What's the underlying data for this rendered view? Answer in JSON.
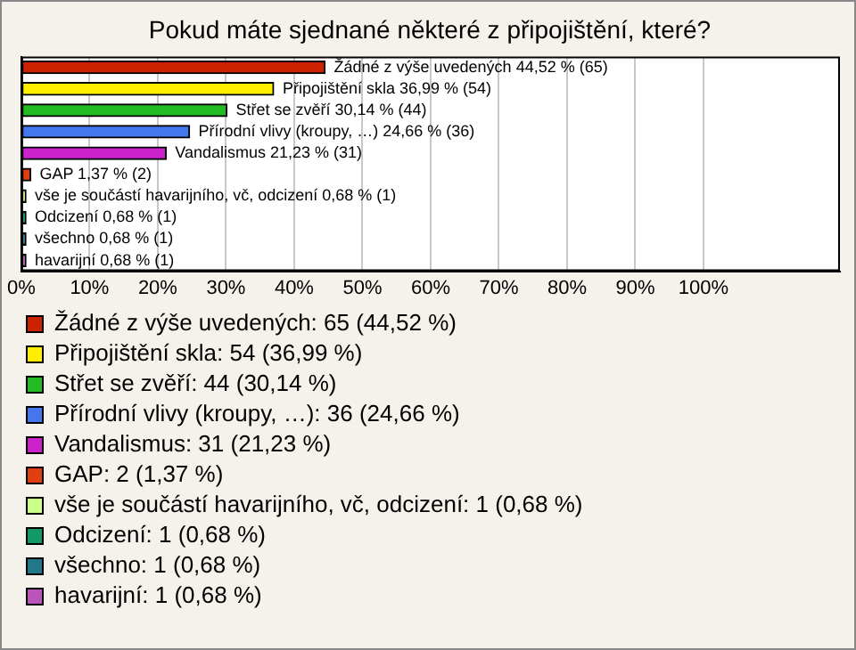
{
  "chart_data": {
    "type": "bar",
    "orientation": "horizontal",
    "title": "Pokud máte sjednané některé z připojištění, které?",
    "categories": [
      null,
      null,
      null,
      null,
      null,
      null,
      null,
      null,
      null,
      null
    ],
    "series": [
      {
        "name": "Žádné z výše uvedených: 65 (44,52 %)",
        "color": "#cc2200",
        "values": [
          44.52,
          null,
          null,
          null,
          null,
          null,
          null,
          null,
          null,
          null
        ],
        "value_labels": [
          "Žádné z výše uvedených 44,52 % (65)",
          null,
          null,
          null,
          null,
          null,
          null,
          null,
          null,
          null
        ]
      },
      {
        "name": "Připojištění skla: 54 (36,99 %)",
        "color": "#ffee00",
        "values": [
          null,
          36.99,
          null,
          null,
          null,
          null,
          null,
          null,
          null,
          null
        ],
        "value_labels": [
          null,
          "Připojištění skla 36,99 % (54)",
          null,
          null,
          null,
          null,
          null,
          null,
          null,
          null
        ]
      },
      {
        "name": "Střet se zvěří: 44 (30,14 %)",
        "color": "#22bb22",
        "values": [
          null,
          null,
          30.14,
          null,
          null,
          null,
          null,
          null,
          null,
          null
        ],
        "value_labels": [
          null,
          null,
          "Střet se zvěří 30,14 % (44)",
          null,
          null,
          null,
          null,
          null,
          null,
          null
        ]
      },
      {
        "name": "Přírodní vlivy (kroupy, …): 36 (24,66 %)",
        "color": "#4477ee",
        "values": [
          null,
          null,
          null,
          24.66,
          null,
          null,
          null,
          null,
          null,
          null
        ],
        "value_labels": [
          null,
          null,
          null,
          "Přírodní vlivy (kroupy, …) 24,66 % (36)",
          null,
          null,
          null,
          null,
          null,
          null
        ]
      },
      {
        "name": "Vandalismus: 31 (21,23 %)",
        "color": "#cc22cc",
        "values": [
          null,
          null,
          null,
          null,
          21.23,
          null,
          null,
          null,
          null,
          null
        ],
        "value_labels": [
          null,
          null,
          null,
          null,
          "Vandalismus 21,23 % (31)",
          null,
          null,
          null,
          null,
          null
        ]
      },
      {
        "name": "GAP: 2 (1,37 %)",
        "color": "#e04010",
        "values": [
          null,
          null,
          null,
          null,
          null,
          1.37,
          null,
          null,
          null,
          null
        ],
        "value_labels": [
          null,
          null,
          null,
          null,
          null,
          "GAP 1,37 % (2)",
          null,
          null,
          null,
          null
        ]
      },
      {
        "name": "vše je součástí havarijního, vč, odcizení: 1 (0,68 %)",
        "color": "#ccff88",
        "values": [
          null,
          null,
          null,
          null,
          null,
          null,
          0.68,
          null,
          null,
          null
        ],
        "value_labels": [
          null,
          null,
          null,
          null,
          null,
          null,
          "vše je součástí havarijního, vč, odcizení 0,68 % (1)",
          null,
          null,
          null
        ]
      },
      {
        "name": "Odcizení: 1 (0,68 %)",
        "color": "#119966",
        "values": [
          null,
          null,
          null,
          null,
          null,
          null,
          null,
          0.68,
          null,
          null
        ],
        "value_labels": [
          null,
          null,
          null,
          null,
          null,
          null,
          null,
          "Odcizení 0,68 % (1)",
          null,
          null
        ]
      },
      {
        "name": "všechno: 1 (0,68 %)",
        "color": "#227788",
        "values": [
          null,
          null,
          null,
          null,
          null,
          null,
          null,
          null,
          0.68,
          null
        ],
        "value_labels": [
          null,
          null,
          null,
          null,
          null,
          null,
          null,
          null,
          "všechno 0,68 % (1)",
          null
        ]
      },
      {
        "name": "havarijní: 1 (0,68 %)",
        "color": "#bb55bb",
        "values": [
          null,
          null,
          null,
          null,
          null,
          null,
          null,
          null,
          null,
          0.68
        ],
        "value_labels": [
          null,
          null,
          null,
          null,
          null,
          null,
          null,
          null,
          null,
          "havarijní 0,68 % (1)"
        ]
      }
    ],
    "xlim": [
      0,
      120
    ],
    "xticks": [
      {
        "value": 0,
        "label": "0%"
      },
      {
        "value": 10,
        "label": "10%"
      },
      {
        "value": 20,
        "label": "20%"
      },
      {
        "value": 30,
        "label": "30%"
      },
      {
        "value": 40,
        "label": "40%"
      },
      {
        "value": 50,
        "label": "50%"
      },
      {
        "value": 60,
        "label": "60%"
      },
      {
        "value": 70,
        "label": "70%"
      },
      {
        "value": 80,
        "label": "80%"
      },
      {
        "value": 90,
        "label": "90%"
      },
      {
        "value": 100,
        "label": "100%"
      }
    ],
    "grid": "x",
    "legend": "bottom",
    "tick_labels": "x"
  }
}
